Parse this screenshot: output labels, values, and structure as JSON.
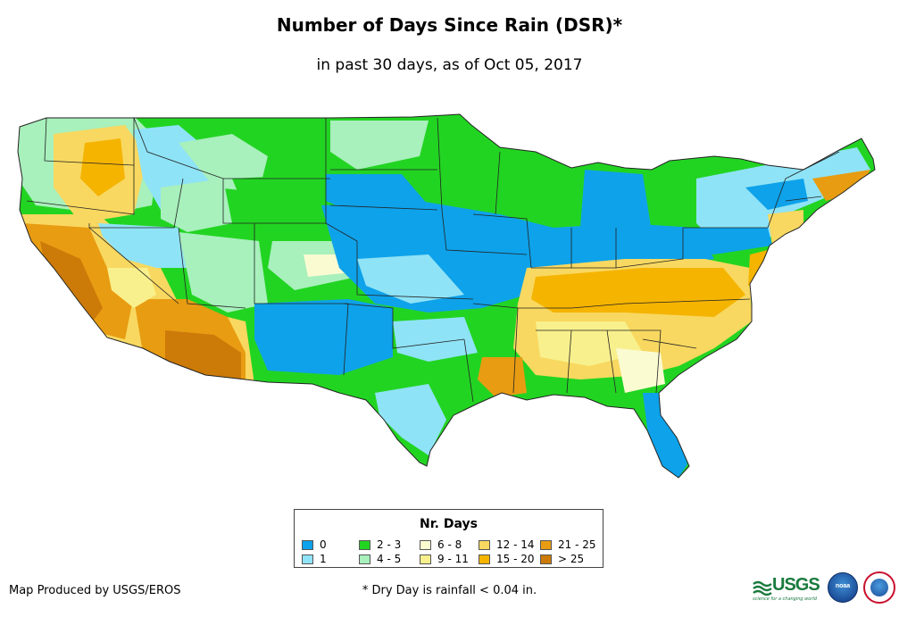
{
  "map": {
    "title": "Number of Days Since Rain (DSR)*",
    "subtitle": "in past 30 days, as of Oct 05, 2017"
  },
  "legend": {
    "title": "Nr. Days",
    "items": [
      {
        "label": "0",
        "color": "#0ea2ea"
      },
      {
        "label": "1",
        "color": "#8fe3f6"
      },
      {
        "label": "2 - 3",
        "color": "#22d422"
      },
      {
        "label": "4 - 5",
        "color": "#a8f0bc"
      },
      {
        "label": "6 - 8",
        "color": "#fbfbd2"
      },
      {
        "label": "9 - 11",
        "color": "#f8f08c"
      },
      {
        "label": "12 - 14",
        "color": "#f8d860"
      },
      {
        "label": "15 - 20",
        "color": "#f5b400"
      },
      {
        "label": "21 - 25",
        "color": "#e89c12"
      },
      {
        "label": "> 25",
        "color": "#cc7a08"
      }
    ]
  },
  "footer": {
    "credit": "Map Produced by USGS/EROS",
    "footnote": "* Dry Day is rainfall < 0.04 in."
  },
  "logos": {
    "usgs": "USGS",
    "usgs_tagline": "science for a changing world",
    "noaa": "noaa"
  }
}
